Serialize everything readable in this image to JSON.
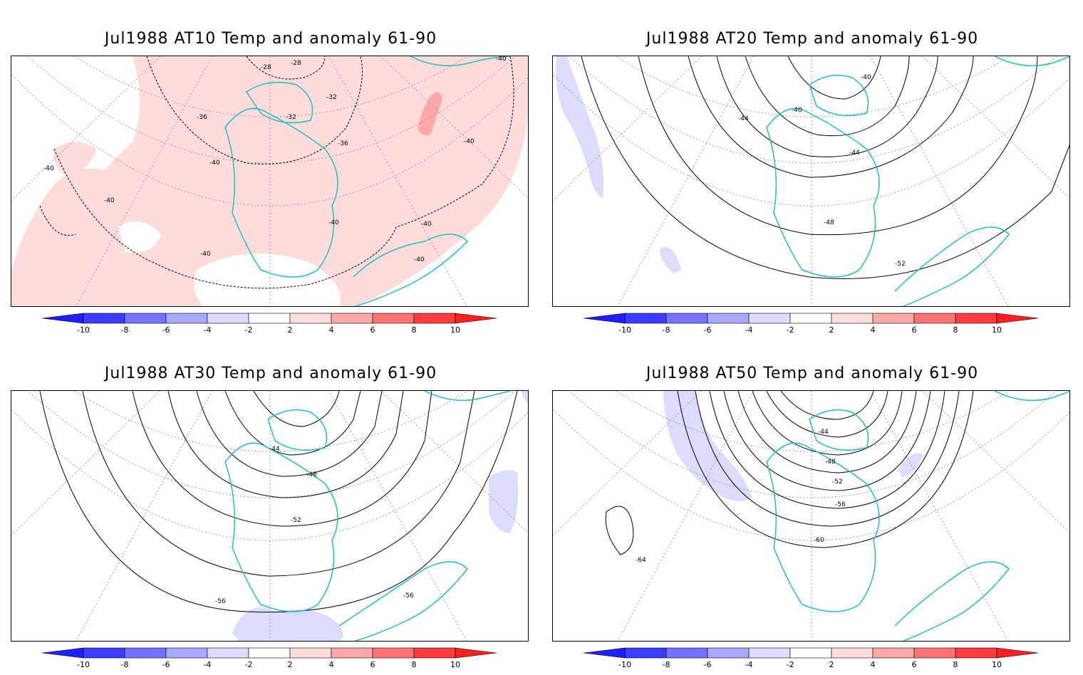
{
  "colorbar": {
    "labels": [
      "-10",
      "-8",
      "-6",
      "-4",
      "-2",
      "2",
      "4",
      "6",
      "8",
      "10"
    ],
    "colors": [
      "#1f1fff",
      "#3c3cff",
      "#7373ff",
      "#a8a8ff",
      "#dcdcff",
      "#ffffff",
      "#ffdcdc",
      "#ffa8a8",
      "#ff7373",
      "#ff3c3c",
      "#ff1f1f"
    ]
  },
  "styles": {
    "coast_color": "#1fbfbf",
    "contour_color": "#000000",
    "grid_color": "#9a9a9a"
  },
  "panels": [
    {
      "title": "Jul1988 AT10 Temp and anomaly 61-90",
      "contour_labels": [
        "-28",
        "-28",
        "-32",
        "-32",
        "-36",
        "-36",
        "-40",
        "-40",
        "-40",
        "-40",
        "-40",
        "-40",
        "-40",
        "-40",
        "-40"
      ]
    },
    {
      "title": "Jul1988 AT20 Temp and anomaly 61-90",
      "contour_labels": [
        "-40",
        "-40",
        "-44",
        "-44",
        "-48",
        "-52"
      ]
    },
    {
      "title": "Jul1988 AT30 Temp and anomaly 61-90",
      "contour_labels": [
        "-44",
        "-48",
        "-52",
        "-56",
        "-56"
      ]
    },
    {
      "title": "Jul1988 AT50 Temp and anomaly 61-90",
      "contour_labels": [
        "-44",
        "-48",
        "-52",
        "-56",
        "-60",
        "-64"
      ]
    }
  ]
}
